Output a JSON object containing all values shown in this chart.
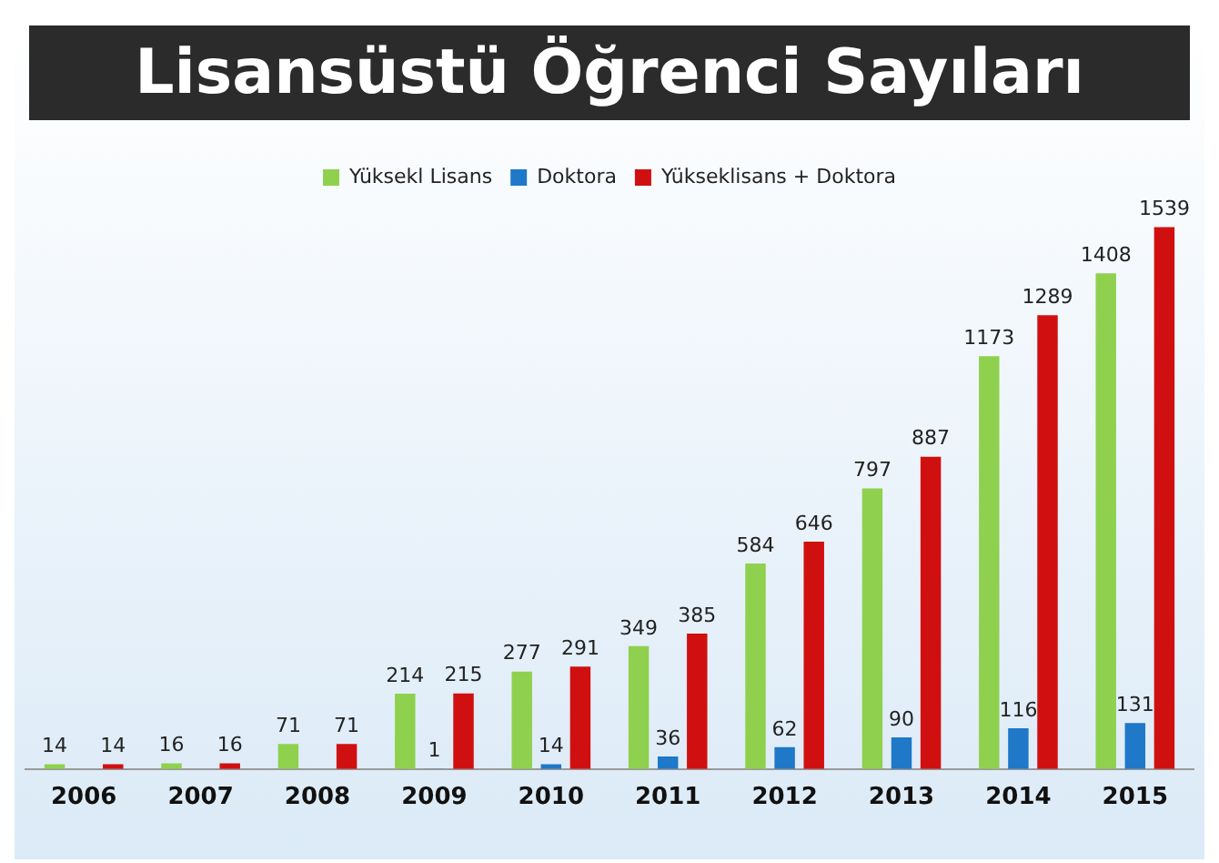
{
  "chart_data": {
    "type": "bar",
    "title": "Lisansüstü Öğrenci Sayıları",
    "categories": [
      "2006",
      "2007",
      "2008",
      "2009",
      "2010",
      "2011",
      "2012",
      "2013",
      "2014",
      "2015"
    ],
    "series": [
      {
        "name": "Yüksekl Lisans",
        "color": "#8fd14f",
        "values": [
          14,
          16,
          71,
          214,
          277,
          349,
          584,
          797,
          1173,
          1408
        ]
      },
      {
        "name": "Doktora",
        "color": "#1f78c8",
        "values": [
          null,
          null,
          null,
          1,
          14,
          36,
          62,
          90,
          116,
          131
        ]
      },
      {
        "name": "Yükseklisans + Doktora",
        "color": "#d01010",
        "values": [
          14,
          16,
          71,
          215,
          291,
          385,
          646,
          887,
          1289,
          1539
        ]
      }
    ],
    "data_labels": true,
    "legend": "top",
    "grid": false
  }
}
